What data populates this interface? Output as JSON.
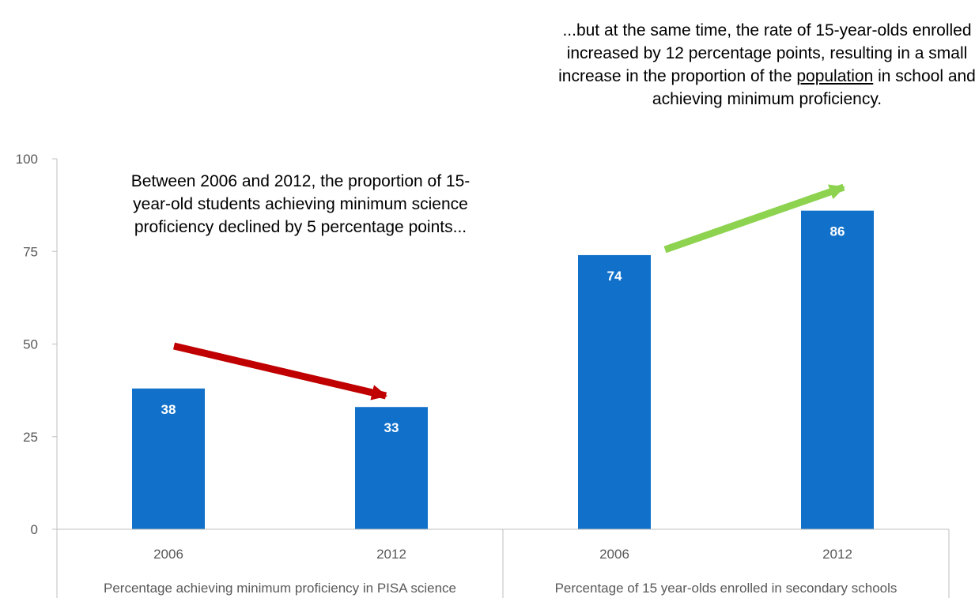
{
  "chart_data": {
    "type": "bar",
    "groups": [
      {
        "label": "Percentage achieving minimum proficiency in PISA science",
        "categories": [
          "2006",
          "2012"
        ],
        "values": [
          38,
          33
        ],
        "data_labels": [
          "38",
          "33"
        ]
      },
      {
        "label": "Percentage of 15 year-olds enrolled in secondary schools",
        "categories": [
          "2006",
          "2012"
        ],
        "values": [
          74,
          86
        ],
        "data_labels": [
          "74",
          "86"
        ]
      }
    ],
    "ylim": [
      0,
      100
    ],
    "yticks": [
      "0",
      "25",
      "50",
      "75",
      "100"
    ],
    "grid": false,
    "legend": "none",
    "colors": {
      "bar": "#1170C9",
      "down_arrow": "#C00000",
      "up_arrow": "#8DD34F",
      "axis": "#BFBFBF",
      "text": "#595959"
    },
    "annotations": {
      "left": "Between 2006 and 2012, the proportion of 15-year-old students achieving minimum science proficiency declined by 5 percentage points...",
      "right_pre": "...but at the same time, the rate of 15-year-olds enrolled increased by 12 percentage points, resulting in a small increase in the proportion of the ",
      "right_underlined": "population",
      "right_post": " in school and achieving minimum proficiency."
    }
  }
}
